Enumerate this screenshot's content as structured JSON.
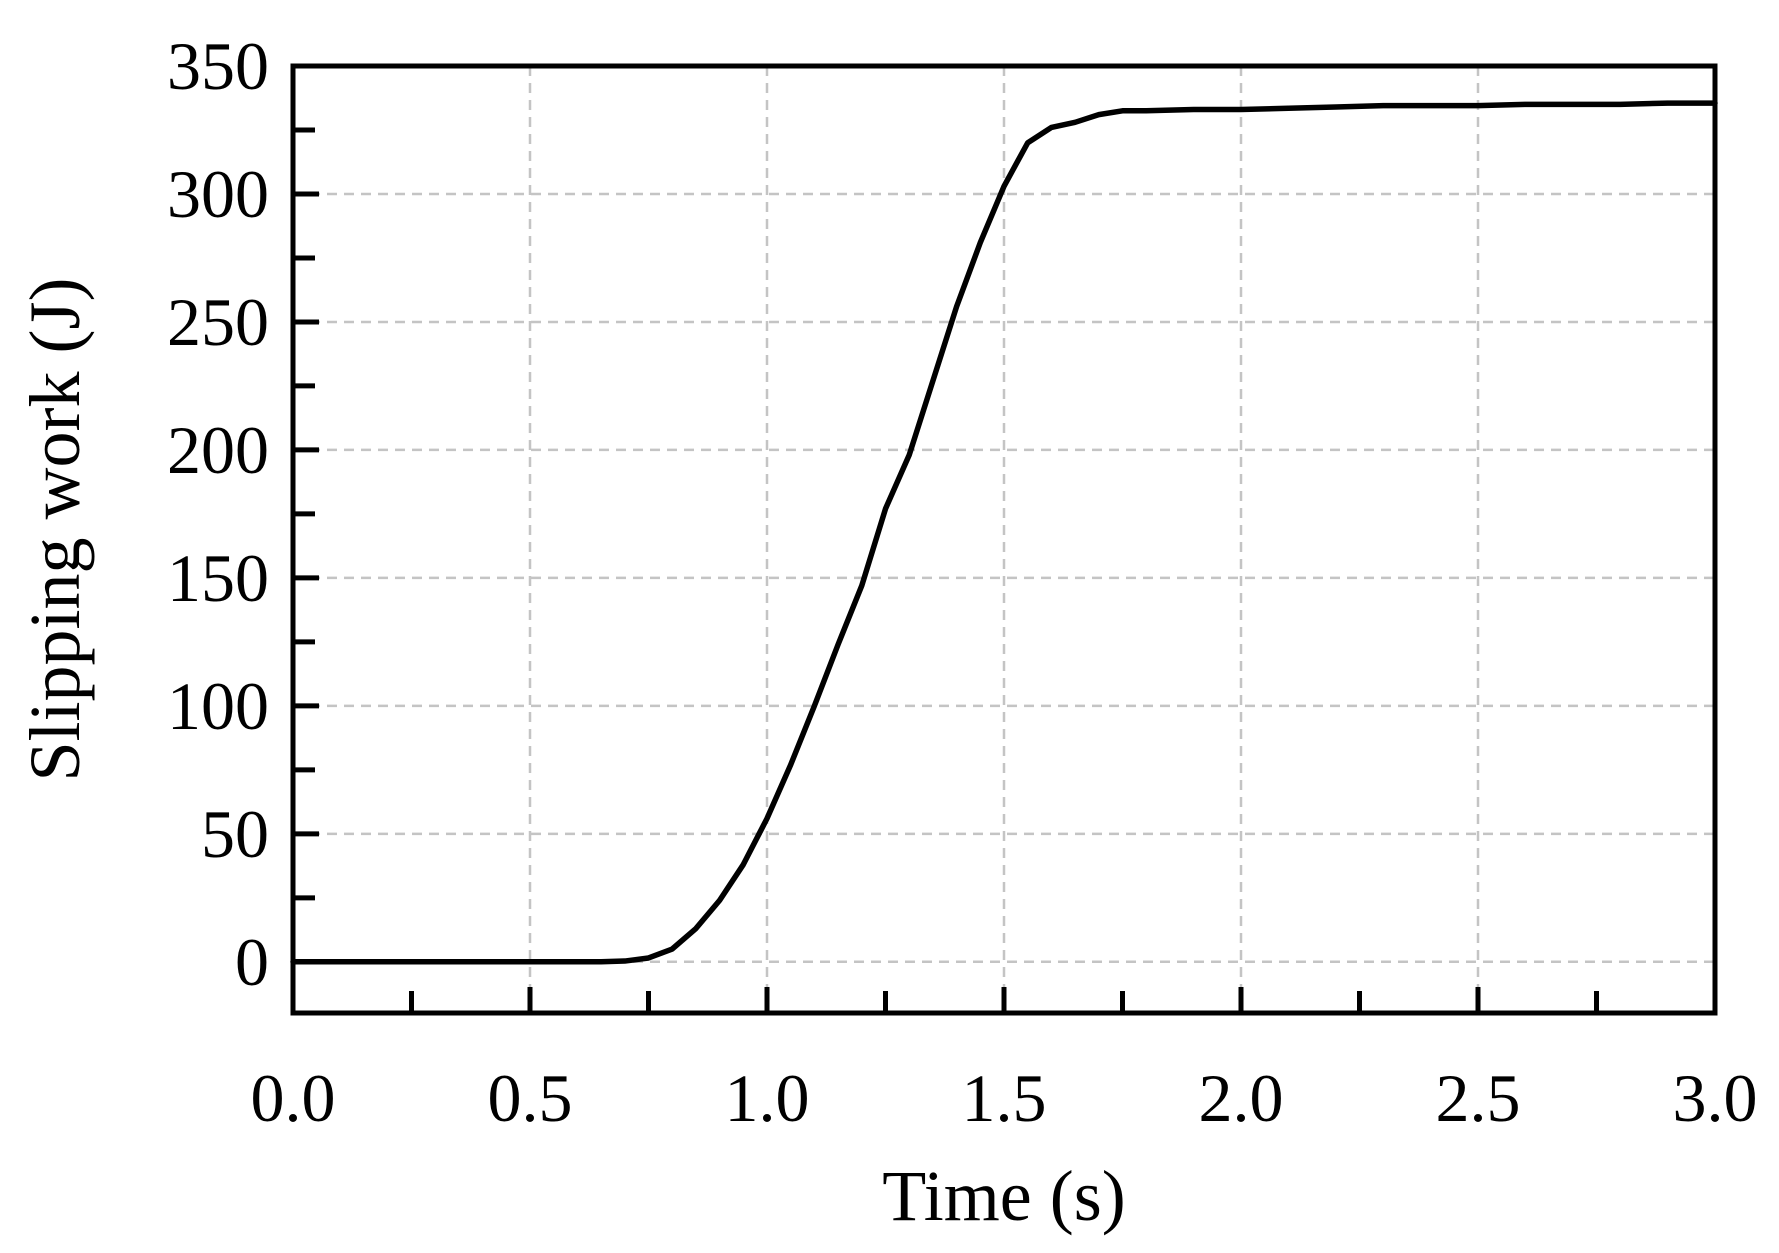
{
  "chart_data": {
    "type": "line",
    "title": "",
    "xlabel": "Time (s)",
    "ylabel": "Slipping work (J)",
    "xlim": [
      0.0,
      3.0
    ],
    "ylim": [
      -20,
      350
    ],
    "x_ticks": [
      0.0,
      0.5,
      1.0,
      1.5,
      2.0,
      2.5,
      3.0
    ],
    "x_tick_labels": [
      "0.0",
      "0.5",
      "1.0",
      "1.5",
      "2.0",
      "2.5",
      "3.0"
    ],
    "x_minor_ticks": [
      0.25,
      0.75,
      1.25,
      1.75,
      2.25,
      2.75
    ],
    "y_ticks": [
      0,
      50,
      100,
      150,
      200,
      250,
      300,
      350
    ],
    "y_tick_labels": [
      "0",
      "50",
      "100",
      "150",
      "200",
      "250",
      "300",
      "350"
    ],
    "y_minor_ticks": [
      25,
      75,
      125,
      175,
      225,
      275,
      325
    ],
    "grid": true,
    "legend": "none",
    "colors": {
      "line": "#000000",
      "grid": "#c4c4c4",
      "frame": "#000000"
    },
    "series": [
      {
        "x": [
          0.0,
          0.1,
          0.2,
          0.3,
          0.4,
          0.5,
          0.6,
          0.65,
          0.7,
          0.75,
          0.8,
          0.85,
          0.9,
          0.95,
          1.0,
          1.05,
          1.1,
          1.15,
          1.2,
          1.25,
          1.3,
          1.35,
          1.4,
          1.45,
          1.5,
          1.55,
          1.6,
          1.65,
          1.7,
          1.75,
          1.8,
          1.9,
          2.0,
          2.1,
          2.2,
          2.3,
          2.4,
          2.5,
          2.6,
          2.7,
          2.8,
          2.9,
          3.0
        ],
        "y": [
          0,
          0,
          0,
          0,
          0,
          0,
          0,
          0,
          0.3,
          1.5,
          5,
          13,
          24,
          38,
          56,
          77,
          100,
          124,
          147,
          177,
          198,
          227,
          256,
          281,
          303,
          320,
          326,
          328,
          331,
          332.5,
          332.5,
          333,
          333,
          333.5,
          334,
          334.5,
          334.5,
          334.5,
          335,
          335,
          335,
          335.5,
          335.5
        ]
      }
    ]
  }
}
